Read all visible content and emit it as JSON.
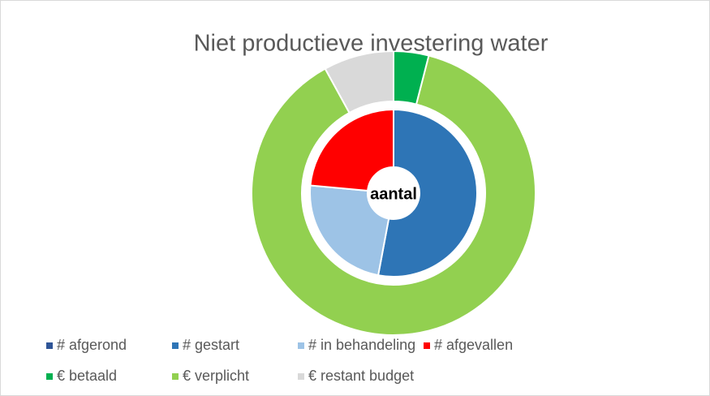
{
  "chart_data": {
    "type": "doughnut",
    "title": "Niet productieve investering water",
    "center_label": "aantal",
    "rings": [
      {
        "categories": [
          "# afgerond",
          "# gestart",
          "# in behandeling",
          "# afgevallen"
        ],
        "colors": [
          "#2f5597",
          "#2e75b6",
          "#9dc3e6",
          "#ff0000"
        ],
        "values": [
          0,
          9,
          4,
          4
        ]
      },
      {
        "categories": [
          "€ betaald",
          "€ verplicht",
          "€ restant budget"
        ],
        "colors": [
          "#00b050",
          "#92d050",
          "#d9d9d9"
        ],
        "values": [
          4,
          88,
          8
        ]
      }
    ],
    "legend": "bottom"
  }
}
